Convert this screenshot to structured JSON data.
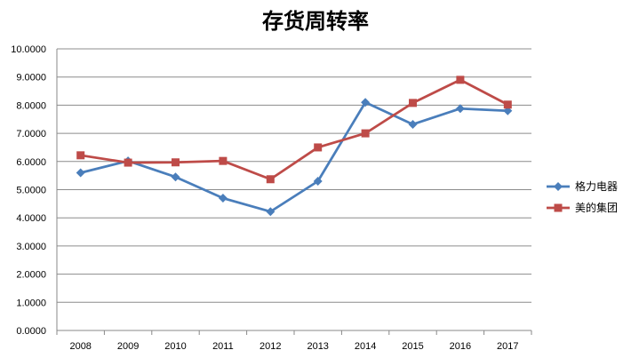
{
  "chart_data": {
    "type": "line",
    "title": "存货周转率",
    "categories": [
      "2008",
      "2009",
      "2010",
      "2011",
      "2012",
      "2013",
      "2014",
      "2015",
      "2016",
      "2017"
    ],
    "series": [
      {
        "name": "格力电器",
        "color": "#4a7ebb",
        "marker": "diamond",
        "values": [
          5.6,
          6.02,
          5.45,
          4.7,
          4.22,
          5.3,
          8.1,
          7.32,
          7.88,
          7.8
        ]
      },
      {
        "name": "美的集团",
        "color": "#be4b48",
        "marker": "square",
        "values": [
          6.22,
          5.96,
          5.97,
          6.02,
          5.37,
          6.5,
          7.0,
          8.08,
          8.9,
          8.02
        ]
      }
    ],
    "ylim": [
      0,
      10
    ],
    "y_ticks": [
      "0.0000",
      "1.0000",
      "2.0000",
      "3.0000",
      "4.0000",
      "5.0000",
      "6.0000",
      "7.0000",
      "8.0000",
      "9.0000",
      "10.0000"
    ],
    "grid": true,
    "legend": "right"
  }
}
